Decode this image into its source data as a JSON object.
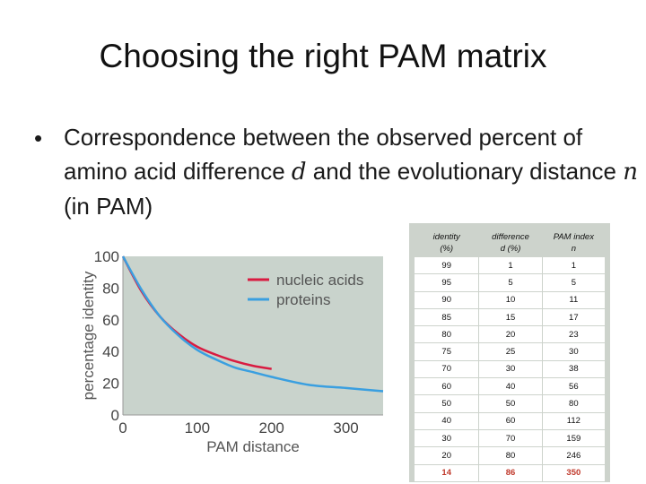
{
  "slide": {
    "title": "Choosing the right PAM matrix",
    "bullet": {
      "dot": "•",
      "text_a": "Correspondence between the observed percent of amino acid difference ",
      "var_d": "d",
      "text_b": " and the evolutionary distance ",
      "var_n": "n",
      "text_c": " (in PAM)"
    }
  },
  "chart_data": {
    "type": "line",
    "xlabel": "PAM distance",
    "ylabel": "percentage identity",
    "xlim": [
      0,
      350
    ],
    "ylim": [
      0,
      100
    ],
    "x_ticks": [
      "0",
      "100",
      "200",
      "300"
    ],
    "y_ticks": [
      "0",
      "20",
      "40",
      "60",
      "80",
      "100"
    ],
    "legend_position": "top-right",
    "grid": false,
    "background": "#c9d3cc",
    "series": [
      {
        "name": "nucleic acids",
        "color": "#d91b41",
        "x": [
          0,
          25,
          50,
          75,
          100,
          125,
          150,
          175,
          200
        ],
        "y": [
          100,
          78,
          62,
          51,
          43,
          38,
          34,
          31,
          29
        ]
      },
      {
        "name": "proteins",
        "color": "#3a9fe0",
        "x": [
          0,
          25,
          50,
          75,
          100,
          125,
          150,
          175,
          200,
          250,
          300,
          350
        ],
        "y": [
          100,
          79,
          62,
          50,
          41,
          35,
          30,
          27,
          24,
          19,
          17,
          15
        ]
      }
    ]
  },
  "table": {
    "headers": [
      [
        "identity",
        "(%)"
      ],
      [
        "difference",
        "d (%)"
      ],
      [
        "PAM index",
        "n"
      ]
    ],
    "rows": [
      [
        "99",
        "1",
        "1"
      ],
      [
        "95",
        "5",
        "5"
      ],
      [
        "90",
        "10",
        "11"
      ],
      [
        "85",
        "15",
        "17"
      ],
      [
        "80",
        "20",
        "23"
      ],
      [
        "75",
        "25",
        "30"
      ],
      [
        "70",
        "30",
        "38"
      ],
      [
        "60",
        "40",
        "56"
      ],
      [
        "50",
        "50",
        "80"
      ],
      [
        "40",
        "60",
        "112"
      ],
      [
        "30",
        "70",
        "159"
      ],
      [
        "20",
        "80",
        "246"
      ],
      [
        "14",
        "86",
        "350"
      ]
    ]
  }
}
